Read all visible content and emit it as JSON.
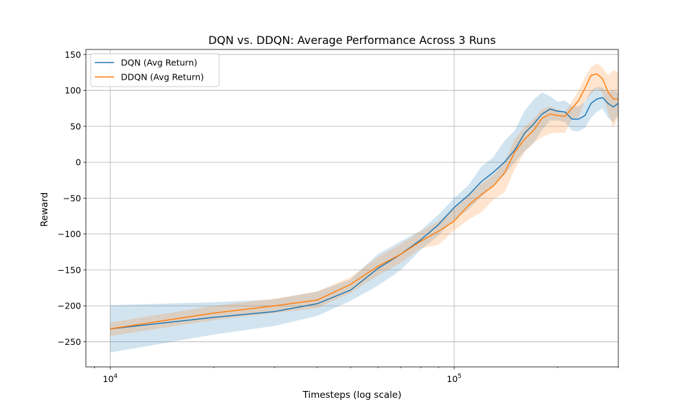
{
  "chart_data": {
    "type": "line",
    "title": "DQN vs. DDQN: Average Performance Across 3 Runs",
    "xlabel": "Timesteps (log scale)",
    "ylabel": "Reward",
    "xscale": "log",
    "xlim": [
      8500,
      300000
    ],
    "ylim": [
      -285,
      157
    ],
    "grid": true,
    "legend_position": "top-left",
    "x_ticks": [
      {
        "value": 10000,
        "base": "10",
        "exp": "4"
      },
      {
        "value": 100000,
        "base": "10",
        "exp": "5"
      }
    ],
    "y_ticks": [
      {
        "value": 150,
        "label": "150"
      },
      {
        "value": 100,
        "label": "100"
      },
      {
        "value": 50,
        "label": "50"
      },
      {
        "value": 0,
        "label": "0"
      },
      {
        "value": -50,
        "label": "−50"
      },
      {
        "value": -100,
        "label": "−100"
      },
      {
        "value": -150,
        "label": "−150"
      },
      {
        "value": -200,
        "label": "−200"
      },
      {
        "value": -250,
        "label": "−250"
      }
    ],
    "series": [
      {
        "name": "DQN (Avg Return)",
        "color": "#1f77b4",
        "x": [
          10000,
          20000,
          30000,
          40000,
          50000,
          60000,
          70000,
          80000,
          90000,
          100000,
          110000,
          120000,
          130000,
          140000,
          150000,
          160000,
          170000,
          180000,
          190000,
          200000,
          210000,
          220000,
          230000,
          240000,
          250000,
          260000,
          270000,
          280000,
          290000,
          300000
        ],
        "y": [
          -232,
          -216,
          -208,
          -197,
          -178,
          -148,
          -128,
          -108,
          -87,
          -63,
          -46,
          -27,
          -14,
          0,
          17,
          40,
          53,
          67,
          74,
          71,
          70,
          60,
          60,
          65,
          82,
          88,
          90,
          82,
          77,
          82
        ],
        "lower": [
          -265,
          -240,
          -228,
          -214,
          -193,
          -172,
          -150,
          -122,
          -102,
          -80,
          -66,
          -48,
          -32,
          -18,
          0,
          15,
          26,
          45,
          58,
          58,
          56,
          44,
          43,
          48,
          62,
          70,
          75,
          62,
          56,
          66
        ],
        "upper": [
          -199,
          -195,
          -191,
          -180,
          -163,
          -128,
          -110,
          -95,
          -73,
          -50,
          -32,
          -6,
          7,
          30,
          44,
          71,
          87,
          97,
          92,
          84,
          86,
          78,
          78,
          84,
          100,
          105,
          104,
          98,
          100,
          97
        ]
      },
      {
        "name": "DDQN (Avg Return)",
        "color": "#ff7f0e",
        "x": [
          10000,
          20000,
          30000,
          40000,
          50000,
          60000,
          70000,
          80000,
          90000,
          100000,
          110000,
          120000,
          130000,
          140000,
          150000,
          160000,
          170000,
          180000,
          190000,
          200000,
          210000,
          220000,
          230000,
          240000,
          250000,
          260000,
          270000,
          280000,
          290000,
          300000
        ],
        "y": [
          -232,
          -210,
          -200,
          -192,
          -170,
          -145,
          -128,
          -110,
          -96,
          -82,
          -60,
          -45,
          -33,
          -15,
          14,
          32,
          44,
          61,
          67,
          65,
          64,
          75,
          86,
          103,
          121,
          123,
          116,
          98,
          88,
          88
        ],
        "lower": [
          -242,
          -220,
          -210,
          -203,
          -182,
          -158,
          -140,
          -120,
          -115,
          -95,
          -80,
          -70,
          -52,
          -42,
          -10,
          14,
          27,
          35,
          40,
          41,
          41,
          60,
          63,
          85,
          95,
          103,
          97,
          70,
          48,
          62
        ],
        "upper": [
          -223,
          -200,
          -190,
          -180,
          -160,
          -132,
          -114,
          -96,
          -82,
          -65,
          -46,
          -30,
          -18,
          0,
          32,
          49,
          60,
          74,
          78,
          73,
          70,
          85,
          100,
          118,
          132,
          138,
          132,
          121,
          128,
          125
        ]
      }
    ]
  }
}
